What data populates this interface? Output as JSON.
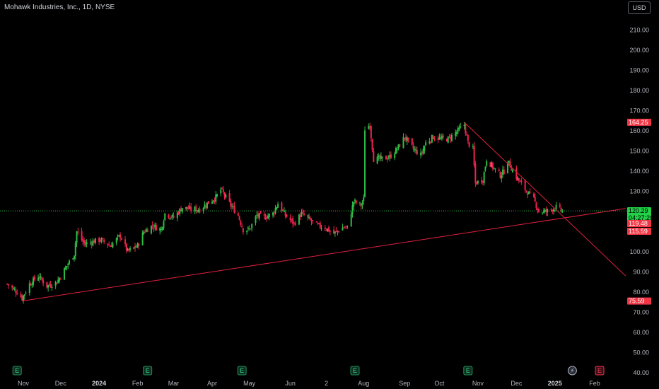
{
  "title": "Mohawk Industries, Inc., 1D, NYSE",
  "currency_button": "USD",
  "colors": {
    "background": "#000000",
    "up": "#2ebd45",
    "down": "#f0224e",
    "trendline": "#e0213f",
    "label_red": "#f23645",
    "label_green": "#22d147",
    "price_line": "#2ebd45",
    "earnings_icon": "#1f8f5a"
  },
  "chart_data": {
    "type": "candlestick",
    "symbol": "Mohawk Industries, Inc.",
    "interval": "1D",
    "exchange": "NYSE",
    "y_axis": {
      "ticks": [
        40,
        50,
        60,
        70,
        80,
        90,
        100,
        110,
        120,
        130,
        140,
        150,
        160,
        170,
        180,
        190,
        200,
        210
      ],
      "labels": [
        "40.00",
        "50.00",
        "60.00",
        "70.00",
        "80.00",
        "90.00",
        "100.00",
        "110.00",
        "120.00",
        "130.00",
        "140.00",
        "150.00",
        "160.00",
        "170.00",
        "180.00",
        "190.00",
        "200.00",
        "210.00"
      ],
      "ylim": [
        37,
        215
      ]
    },
    "x_axis": {
      "labels": [
        "Nov",
        "Dec",
        "2024",
        "Feb",
        "Mar",
        "Apr",
        "May",
        "Jun",
        "2",
        "Aug",
        "Sep",
        "Oct",
        "Nov",
        "Dec",
        "2025",
        "Feb"
      ],
      "bold_labels": [
        "2024",
        "2025"
      ],
      "dates": [
        "2023-11-01",
        "2023-12-01",
        "2024-01-01",
        "2024-02-01",
        "2024-03-01",
        "2024-04-01",
        "2024-05-01",
        "2024-06-03",
        "2024-07-02",
        "2024-08-01",
        "2024-09-03",
        "2024-10-01",
        "2024-11-01",
        "2024-12-02",
        "2025-01-02",
        "2025-02-03"
      ]
    },
    "price_anchors": [
      [
        "2023-10-19",
        84
      ],
      [
        "2023-10-27",
        80
      ],
      [
        "2023-10-31",
        77
      ],
      [
        "2023-11-06",
        84
      ],
      [
        "2023-11-13",
        88
      ],
      [
        "2023-11-20",
        83
      ],
      [
        "2023-11-28",
        85
      ],
      [
        "2023-12-05",
        92
      ],
      [
        "2023-12-12",
        99
      ],
      [
        "2023-12-14",
        110
      ],
      [
        "2023-12-20",
        104
      ],
      [
        "2024-01-02",
        106
      ],
      [
        "2024-01-10",
        103
      ],
      [
        "2024-01-18",
        108
      ],
      [
        "2024-01-24",
        100
      ],
      [
        "2024-02-01",
        103
      ],
      [
        "2024-02-06",
        110
      ],
      [
        "2024-02-13",
        113
      ],
      [
        "2024-02-20",
        111
      ],
      [
        "2024-02-23",
        119
      ],
      [
        "2024-03-01",
        117
      ],
      [
        "2024-03-08",
        122
      ],
      [
        "2024-03-15",
        121
      ],
      [
        "2024-03-22",
        121
      ],
      [
        "2024-03-28",
        124
      ],
      [
        "2024-04-04",
        127
      ],
      [
        "2024-04-08",
        131
      ],
      [
        "2024-04-15",
        124
      ],
      [
        "2024-04-22",
        118
      ],
      [
        "2024-04-26",
        111
      ],
      [
        "2024-05-01",
        111
      ],
      [
        "2024-05-07",
        118
      ],
      [
        "2024-05-13",
        117
      ],
      [
        "2024-05-20",
        119
      ],
      [
        "2024-05-24",
        124
      ],
      [
        "2024-05-30",
        118
      ],
      [
        "2024-06-06",
        114
      ],
      [
        "2024-06-12",
        119
      ],
      [
        "2024-06-18",
        116
      ],
      [
        "2024-06-25",
        113
      ],
      [
        "2024-07-01",
        112
      ],
      [
        "2024-07-08",
        109
      ],
      [
        "2024-07-15",
        112
      ],
      [
        "2024-07-19",
        112
      ],
      [
        "2024-07-24",
        125
      ],
      [
        "2024-07-30",
        123
      ],
      [
        "2024-08-01",
        126
      ],
      [
        "2024-08-02",
        161
      ],
      [
        "2024-08-06",
        163
      ],
      [
        "2024-08-09",
        146
      ],
      [
        "2024-08-15",
        146
      ],
      [
        "2024-08-22",
        147
      ],
      [
        "2024-08-28",
        151
      ],
      [
        "2024-09-03",
        157
      ],
      [
        "2024-09-10",
        151
      ],
      [
        "2024-09-16",
        148
      ],
      [
        "2024-09-20",
        154
      ],
      [
        "2024-09-26",
        157
      ],
      [
        "2024-10-02",
        156
      ],
      [
        "2024-10-08",
        156
      ],
      [
        "2024-10-14",
        159
      ],
      [
        "2024-10-21",
        163
      ],
      [
        "2024-10-24",
        154
      ],
      [
        "2024-10-28",
        151
      ],
      [
        "2024-10-30",
        134
      ],
      [
        "2024-11-05",
        136
      ],
      [
        "2024-11-08",
        146
      ],
      [
        "2024-11-13",
        142
      ],
      [
        "2024-11-19",
        138
      ],
      [
        "2024-11-22",
        140
      ],
      [
        "2024-11-25",
        145
      ],
      [
        "2024-12-02",
        137
      ],
      [
        "2024-12-09",
        131
      ],
      [
        "2024-12-16",
        126
      ],
      [
        "2024-12-20",
        120
      ],
      [
        "2024-12-26",
        120
      ],
      [
        "2025-01-03",
        122
      ],
      [
        "2025-01-08",
        120.29
      ]
    ],
    "trendlines": [
      {
        "from": [
          "2023-10-31",
          75.59
        ],
        "to": [
          "2025-02-28",
          121.5
        ]
      },
      {
        "from": [
          "2024-10-21",
          164.25
        ],
        "to": [
          "2025-02-28",
          88
        ]
      }
    ],
    "price_labels": [
      {
        "value": 164.25,
        "text": "164.25",
        "kind": "red"
      },
      {
        "value": 120.29,
        "text": "120.29",
        "kind": "green",
        "sub": "04:27:20"
      },
      {
        "value": 119.48,
        "text": "119.48",
        "kind": "red"
      },
      {
        "value": 115.59,
        "text": "115.59",
        "kind": "red"
      },
      {
        "value": 75.59,
        "text": "75.59",
        "kind": "red"
      }
    ],
    "current_price": 120.29,
    "countdown": "04:27:20",
    "events": [
      {
        "date": "2023-10-27",
        "icon": "E",
        "kind": "earnings"
      },
      {
        "date": "2024-02-09",
        "icon": "E",
        "kind": "earnings"
      },
      {
        "date": "2024-04-25",
        "icon": "E",
        "kind": "earnings"
      },
      {
        "date": "2024-07-25",
        "icon": "E",
        "kind": "earnings"
      },
      {
        "date": "2024-10-24",
        "icon": "E",
        "kind": "earnings"
      },
      {
        "date": "2025-01-16",
        "icon": "⚡",
        "kind": "dividend"
      },
      {
        "date": "2025-02-07",
        "icon": "E",
        "kind": "earnings-upcoming"
      }
    ]
  }
}
